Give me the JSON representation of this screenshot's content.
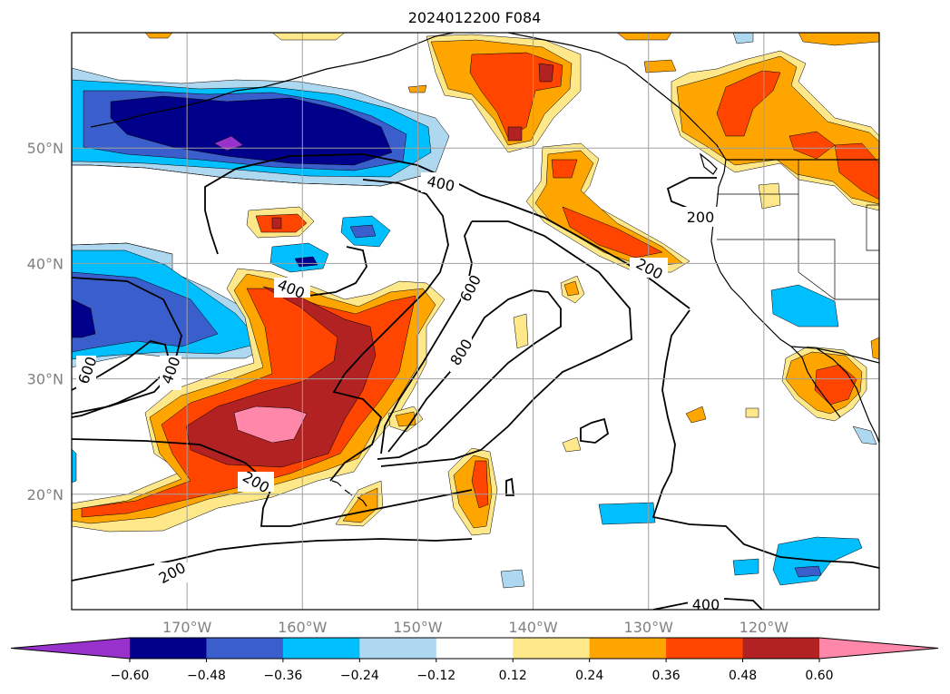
{
  "title": "2024012200 F084",
  "map": {
    "lon_range": [
      -180,
      -110
    ],
    "lat_range": [
      10,
      60
    ],
    "grid": true,
    "lat_ticks": [
      {
        "value": 20,
        "label": "20°N"
      },
      {
        "value": 30,
        "label": "30°N"
      },
      {
        "value": 40,
        "label": "40°N"
      },
      {
        "value": 50,
        "label": "50°N"
      }
    ],
    "lon_ticks": [
      {
        "value": -170,
        "label": "170°W"
      },
      {
        "value": -160,
        "label": "160°W"
      },
      {
        "value": -150,
        "label": "150°W"
      },
      {
        "value": -140,
        "label": "140°W"
      },
      {
        "value": -130,
        "label": "130°W"
      },
      {
        "value": -120,
        "label": "120°W"
      }
    ],
    "contour_labels": [
      "200",
      "400",
      "600",
      "800"
    ]
  },
  "colorbar": {
    "levels": [
      "−0.60",
      "−0.48",
      "−0.36",
      "−0.24",
      "−0.12",
      "0.12",
      "0.24",
      "0.36",
      "0.48",
      "0.60"
    ],
    "colors": [
      "#9932cc",
      "#00008b",
      "#3a5fcd",
      "#00bfff",
      "#add8f0",
      "#ffffff",
      "#ffe88a",
      "#ffa500",
      "#ff4500",
      "#b22222",
      "#ff88aa"
    ]
  }
}
